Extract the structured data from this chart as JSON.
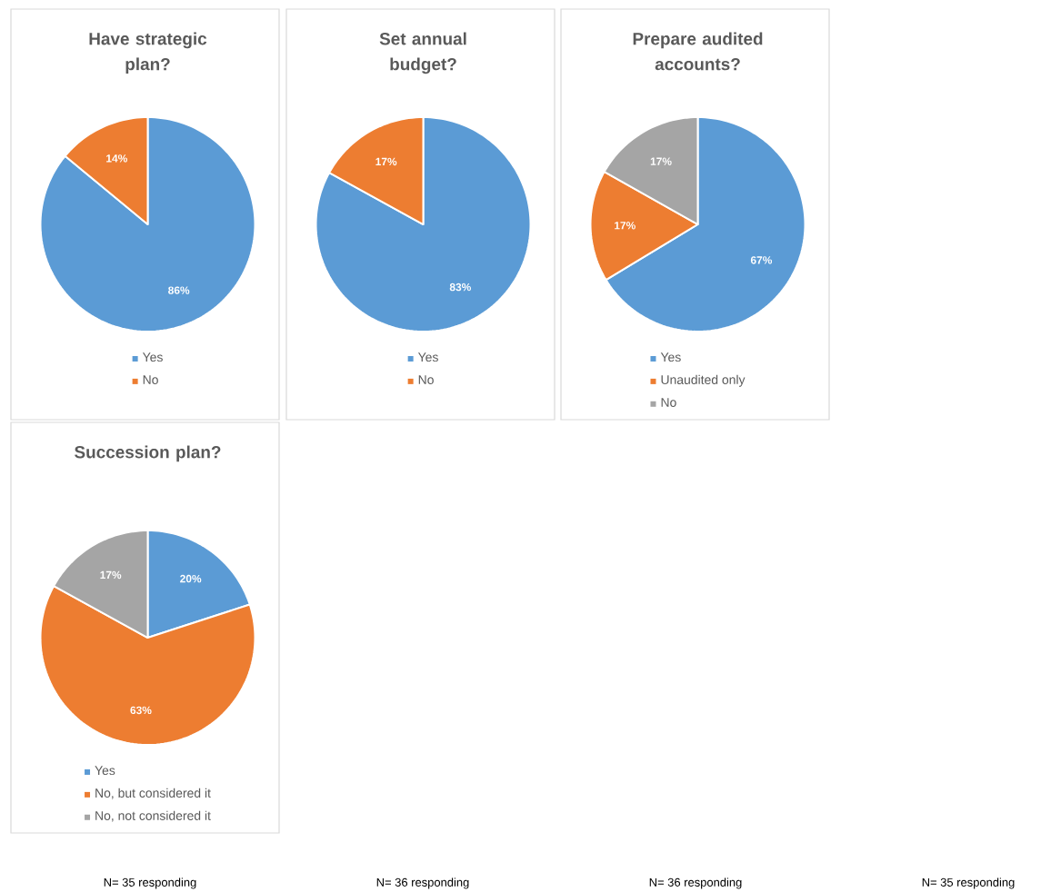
{
  "chart_data": [
    {
      "type": "pie",
      "title": "Have strategic plan?",
      "categories": [
        "Yes",
        "No"
      ],
      "values": [
        86,
        14
      ],
      "colors": [
        "#5b9bd5",
        "#ed7d31"
      ],
      "value_labels": [
        "86%",
        "14%"
      ],
      "legend": "bottom",
      "annotations": [
        "N= 35 responding"
      ]
    },
    {
      "type": "pie",
      "title": "Set annual budget?",
      "categories": [
        "Yes",
        "No"
      ],
      "values": [
        83,
        17
      ],
      "colors": [
        "#5b9bd5",
        "#ed7d31"
      ],
      "value_labels": [
        "83%",
        "17%"
      ],
      "legend": "bottom",
      "annotations": [
        "N= 36 responding"
      ]
    },
    {
      "type": "pie",
      "title": "Prepare audited accounts?",
      "categories": [
        "Yes",
        "Unaudited only",
        "No"
      ],
      "values": [
        67,
        17,
        17
      ],
      "colors": [
        "#5b9bd5",
        "#ed7d31",
        "#a5a5a5"
      ],
      "value_labels": [
        "67%",
        "17%",
        "17%"
      ],
      "legend": "bottom",
      "annotations": [
        "N= 36 responding"
      ]
    },
    {
      "type": "pie",
      "title": "Succession plan?",
      "categories": [
        "Yes",
        "No, but considered it",
        "No, not considered it"
      ],
      "values": [
        20,
        63,
        17
      ],
      "colors": [
        "#5b9bd5",
        "#ed7d31",
        "#a5a5a5"
      ],
      "value_labels": [
        "20%",
        "63%",
        "17%"
      ],
      "legend": "bottom",
      "annotations": [
        "N= 35 responding"
      ]
    }
  ]
}
